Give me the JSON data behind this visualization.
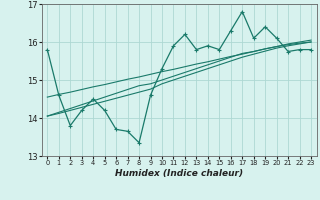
{
  "xlabel": "Humidex (Indice chaleur)",
  "bg_color": "#d7f2ee",
  "grid_color": "#aed8d3",
  "line_color": "#1a7a6a",
  "x_data": [
    0,
    1,
    2,
    3,
    4,
    5,
    6,
    7,
    8,
    9,
    10,
    11,
    12,
    13,
    14,
    15,
    16,
    17,
    18,
    19,
    20,
    21,
    22,
    23
  ],
  "y_main": [
    15.8,
    14.6,
    13.8,
    14.2,
    14.5,
    14.2,
    13.7,
    13.65,
    13.35,
    14.6,
    15.3,
    15.9,
    16.2,
    15.8,
    15.9,
    15.8,
    16.3,
    16.8,
    16.1,
    16.4,
    16.1,
    15.75,
    15.8,
    15.8
  ],
  "y_trend1": [
    14.55,
    14.62,
    14.68,
    14.75,
    14.82,
    14.88,
    14.95,
    15.02,
    15.08,
    15.15,
    15.22,
    15.28,
    15.35,
    15.42,
    15.48,
    15.55,
    15.62,
    15.68,
    15.75,
    15.82,
    15.88,
    15.95,
    16.0,
    16.05
  ],
  "y_trend2": [
    14.05,
    14.15,
    14.25,
    14.35,
    14.45,
    14.55,
    14.65,
    14.75,
    14.85,
    14.9,
    15.0,
    15.1,
    15.2,
    15.3,
    15.4,
    15.5,
    15.6,
    15.7,
    15.75,
    15.82,
    15.88,
    15.93,
    15.97,
    16.0
  ],
  "y_trend3": [
    14.05,
    14.12,
    14.2,
    14.28,
    14.36,
    14.44,
    14.52,
    14.6,
    14.68,
    14.76,
    14.9,
    15.0,
    15.1,
    15.2,
    15.3,
    15.4,
    15.5,
    15.6,
    15.68,
    15.76,
    15.84,
    15.9,
    15.95,
    16.0
  ],
  "ylim": [
    13.0,
    17.0
  ],
  "xlim": [
    -0.5,
    23.5
  ],
  "yticks": [
    13,
    14,
    15,
    16,
    17
  ]
}
